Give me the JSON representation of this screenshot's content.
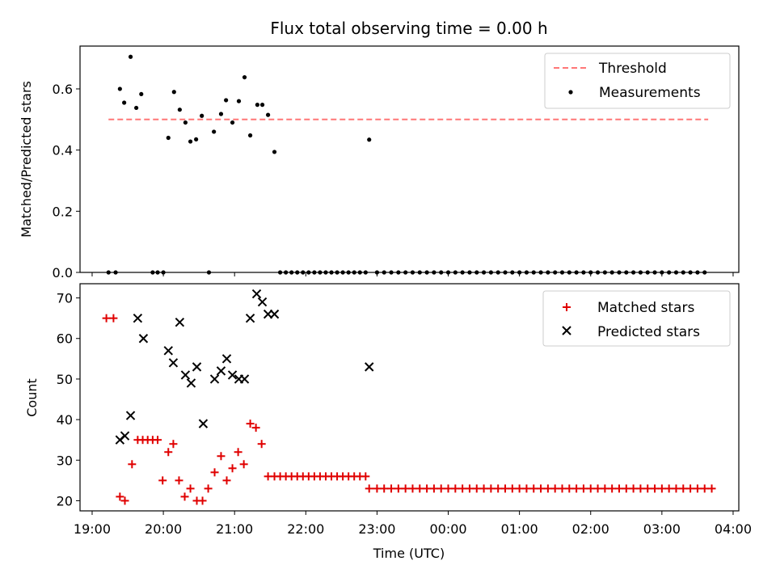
{
  "title": "Flux total observing time = 0.00 h",
  "xlabel": "Time (UTC)",
  "x_ticks": [
    "19:00",
    "20:00",
    "21:00",
    "22:00",
    "23:00",
    "00:00",
    "01:00",
    "02:00",
    "03:00",
    "04:00"
  ],
  "chart_data": [
    {
      "type": "scatter",
      "ylabel": "Matched/Predicted stars",
      "xlim_hours": [
        18.83,
        28.08
      ],
      "ylim": [
        0,
        0.74
      ],
      "y_ticks": [
        "0.0",
        "0.2",
        "0.4",
        "0.6"
      ],
      "y_tick_values": [
        0,
        0.2,
        0.4,
        0.6
      ],
      "legend": "top-right",
      "threshold": {
        "name": "Threshold",
        "value": 0.5,
        "x_range_hours": [
          19.23,
          27.65
        ],
        "color": "#ff7777"
      },
      "series": [
        {
          "name": "Measurements",
          "color": "#000000",
          "x_hours": [
            19.23,
            19.33,
            19.39,
            19.45,
            19.54,
            19.62,
            19.69,
            19.85,
            19.92,
            20.0,
            20.07,
            20.15,
            20.23,
            20.31,
            20.38,
            20.46,
            20.54,
            20.64,
            20.71,
            20.81,
            20.88,
            20.97,
            21.06,
            21.14,
            21.22,
            21.32,
            21.39,
            21.47,
            21.56,
            21.64,
            21.72,
            21.8,
            21.88,
            21.96,
            22.04,
            22.12,
            22.2,
            22.28,
            22.36,
            22.44,
            22.52,
            22.6,
            22.68,
            22.76,
            22.84,
            22.89,
            23.0,
            23.1,
            23.2,
            23.3,
            23.4,
            23.5,
            23.6,
            23.7,
            23.8,
            23.9,
            24.0,
            24.1,
            24.2,
            24.3,
            24.4,
            24.5,
            24.6,
            24.7,
            24.8,
            24.9,
            25.0,
            25.1,
            25.2,
            25.3,
            25.4,
            25.5,
            25.6,
            25.7,
            25.8,
            25.9,
            26.0,
            26.1,
            26.2,
            26.3,
            26.4,
            26.5,
            26.6,
            26.7,
            26.8,
            26.9,
            27.0,
            27.1,
            27.2,
            27.3,
            27.4,
            27.5,
            27.6
          ],
          "y": [
            0.0,
            0.0,
            0.6,
            0.555,
            0.705,
            0.538,
            0.583,
            0.0,
            0.0,
            0.0,
            0.44,
            0.59,
            0.532,
            0.49,
            0.428,
            0.435,
            0.512,
            0.0,
            0.46,
            0.518,
            0.563,
            0.49,
            0.56,
            0.638,
            0.448,
            0.548,
            0.548,
            0.515,
            0.394,
            0.0,
            0.0,
            0.0,
            0.0,
            0.0,
            0.0,
            0.0,
            0.0,
            0.0,
            0.0,
            0.0,
            0.0,
            0.0,
            0.0,
            0.0,
            0.0,
            0.434,
            0.0,
            0.0,
            0.0,
            0.0,
            0.0,
            0.0,
            0.0,
            0.0,
            0.0,
            0.0,
            0.0,
            0.0,
            0.0,
            0.0,
            0.0,
            0.0,
            0.0,
            0.0,
            0.0,
            0.0,
            0.0,
            0.0,
            0.0,
            0.0,
            0.0,
            0.0,
            0.0,
            0.0,
            0.0,
            0.0,
            0.0,
            0.0,
            0.0,
            0.0,
            0.0,
            0.0,
            0.0,
            0.0,
            0.0,
            0.0,
            0.0,
            0.0,
            0.0,
            0.0,
            0.0,
            0.0,
            0.0
          ]
        }
      ]
    },
    {
      "type": "scatter",
      "ylabel": "Count",
      "xlim_hours": [
        18.83,
        28.08
      ],
      "ylim": [
        17.5,
        73.5
      ],
      "y_ticks": [
        "20",
        "30",
        "40",
        "50",
        "60",
        "70"
      ],
      "y_tick_values": [
        20,
        30,
        40,
        50,
        60,
        70
      ],
      "legend": "top-right",
      "series": [
        {
          "name": "Matched stars",
          "color": "#e00000",
          "marker": "plus",
          "x_hours": [
            19.2,
            19.3,
            19.39,
            19.46,
            19.56,
            19.64,
            19.71,
            19.78,
            19.85,
            19.92,
            19.99,
            20.07,
            20.14,
            20.22,
            20.3,
            20.38,
            20.47,
            20.55,
            20.63,
            20.72,
            20.81,
            20.89,
            20.97,
            21.05,
            21.13,
            21.22,
            21.3,
            21.38,
            21.47,
            21.56,
            21.64,
            21.72,
            21.8,
            21.88,
            21.96,
            22.04,
            22.12,
            22.2,
            22.28,
            22.36,
            22.44,
            22.52,
            22.6,
            22.68,
            22.76,
            22.84,
            22.89,
            23.0,
            23.1,
            23.2,
            23.3,
            23.4,
            23.5,
            23.6,
            23.7,
            23.8,
            23.9,
            24.0,
            24.1,
            24.2,
            24.3,
            24.4,
            24.5,
            24.6,
            24.7,
            24.8,
            24.9,
            25.0,
            25.1,
            25.2,
            25.3,
            25.4,
            25.5,
            25.6,
            25.7,
            25.8,
            25.9,
            26.0,
            26.1,
            26.2,
            26.3,
            26.4,
            26.5,
            26.6,
            26.7,
            26.8,
            26.9,
            27.0,
            27.1,
            27.2,
            27.3,
            27.4,
            27.5,
            27.6,
            27.7
          ],
          "y": [
            65,
            65,
            21,
            20,
            29,
            35,
            35,
            35,
            35,
            35,
            25,
            32,
            34,
            25,
            21,
            23,
            20,
            20,
            23,
            27,
            31,
            25,
            28,
            32,
            29,
            39,
            38,
            34,
            26,
            26,
            26,
            26,
            26,
            26,
            26,
            26,
            26,
            26,
            26,
            26,
            26,
            26,
            26,
            26,
            26,
            26,
            23,
            23,
            23,
            23,
            23,
            23,
            23,
            23,
            23,
            23,
            23,
            23,
            23,
            23,
            23,
            23,
            23,
            23,
            23,
            23,
            23,
            23,
            23,
            23,
            23,
            23,
            23,
            23,
            23,
            23,
            23,
            23,
            23,
            23,
            23,
            23,
            23,
            23,
            23,
            23,
            23,
            23,
            23,
            23,
            23,
            23,
            23,
            23,
            23
          ]
        },
        {
          "name": "Predicted stars",
          "color": "#000000",
          "marker": "x",
          "x_hours": [
            19.39,
            19.46,
            19.54,
            19.64,
            19.72,
            20.07,
            20.14,
            20.23,
            20.31,
            20.39,
            20.47,
            20.56,
            20.72,
            20.81,
            20.89,
            20.97,
            21.06,
            21.14,
            21.22,
            21.31,
            21.39,
            21.47,
            21.56,
            22.89
          ],
          "y": [
            35,
            36,
            41,
            65,
            60,
            57,
            54,
            64,
            51,
            49,
            53,
            39,
            50,
            52,
            55,
            51,
            50,
            50,
            65,
            71,
            69,
            66,
            66,
            53
          ]
        }
      ]
    }
  ]
}
